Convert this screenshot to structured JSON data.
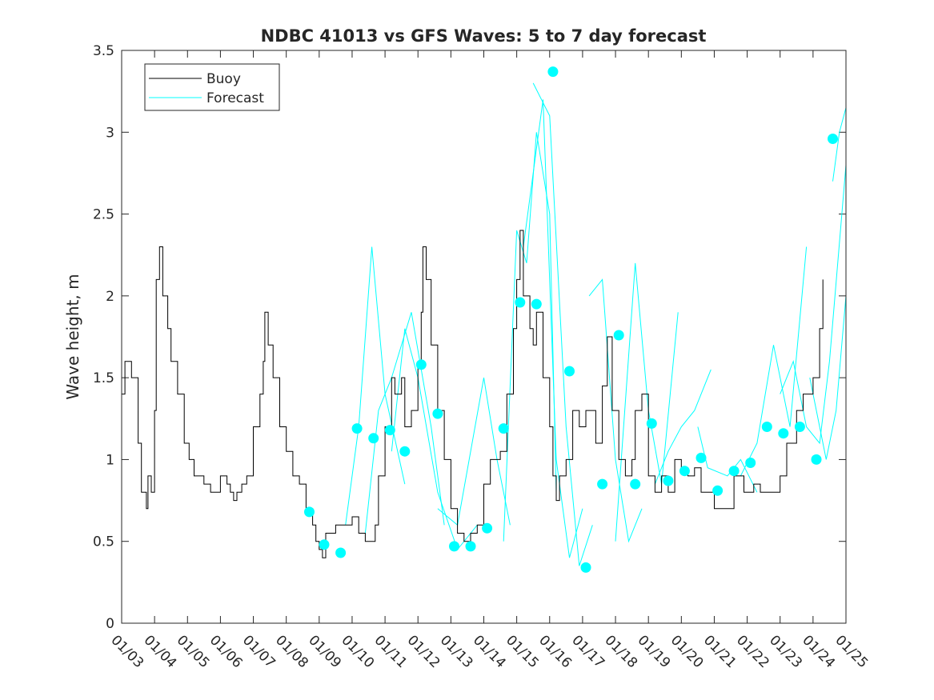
{
  "chart_data": {
    "type": "line",
    "title": "NDBC 41013 vs GFS Waves: 5 to 7 day forecast",
    "xlabel": "",
    "ylabel": "Wave height, m",
    "xlim": [
      0,
      22
    ],
    "ylim": [
      0,
      3.5
    ],
    "x_tick_labels": [
      "01/03",
      "01/04",
      "01/05",
      "01/06",
      "01/07",
      "01/08",
      "01/09",
      "01/10",
      "01/11",
      "01/12",
      "01/13",
      "01/14",
      "01/15",
      "01/16",
      "01/17",
      "01/18",
      "01/19",
      "01/20",
      "01/21",
      "01/22",
      "01/23",
      "01/24",
      "01/25"
    ],
    "y_ticks": [
      0,
      0.5,
      1,
      1.5,
      2,
      2.5,
      3,
      3.5
    ],
    "y_tick_labels": [
      "0",
      "0.5",
      "1",
      "1.5",
      "2",
      "2.5",
      "3",
      "3.5"
    ],
    "legend": {
      "location": "top-left",
      "entries": [
        "Buoy",
        "Forecast"
      ]
    },
    "colors": {
      "buoy": "#000000",
      "forecast": "#00ffff",
      "axis": "#262626"
    },
    "series": [
      {
        "name": "Buoy",
        "points": [
          [
            0,
            1.4
          ],
          [
            0.1,
            1.6
          ],
          [
            0.3,
            1.5
          ],
          [
            0.5,
            1.1
          ],
          [
            0.6,
            0.8
          ],
          [
            0.75,
            0.7
          ],
          [
            0.8,
            0.9
          ],
          [
            0.9,
            0.8
          ],
          [
            1.0,
            1.3
          ],
          [
            1.05,
            2.1
          ],
          [
            1.15,
            2.3
          ],
          [
            1.25,
            2.0
          ],
          [
            1.4,
            1.8
          ],
          [
            1.5,
            1.6
          ],
          [
            1.7,
            1.4
          ],
          [
            1.9,
            1.1
          ],
          [
            2.05,
            1.0
          ],
          [
            2.2,
            0.9
          ],
          [
            2.5,
            0.85
          ],
          [
            2.7,
            0.8
          ],
          [
            2.85,
            0.8
          ],
          [
            3.0,
            0.9
          ],
          [
            3.2,
            0.85
          ],
          [
            3.3,
            0.8
          ],
          [
            3.4,
            0.75
          ],
          [
            3.5,
            0.8
          ],
          [
            3.65,
            0.85
          ],
          [
            3.8,
            0.9
          ],
          [
            4.0,
            1.2
          ],
          [
            4.2,
            1.4
          ],
          [
            4.3,
            1.6
          ],
          [
            4.35,
            1.9
          ],
          [
            4.45,
            1.7
          ],
          [
            4.6,
            1.5
          ],
          [
            4.8,
            1.2
          ],
          [
            5.0,
            1.05
          ],
          [
            5.2,
            0.9
          ],
          [
            5.4,
            0.85
          ],
          [
            5.6,
            0.7
          ],
          [
            5.8,
            0.6
          ],
          [
            5.9,
            0.5
          ],
          [
            6.0,
            0.45
          ],
          [
            6.1,
            0.4
          ],
          [
            6.2,
            0.55
          ],
          [
            6.5,
            0.6
          ],
          [
            6.8,
            0.6
          ],
          [
            7.0,
            0.65
          ],
          [
            7.2,
            0.55
          ],
          [
            7.4,
            0.5
          ],
          [
            7.7,
            0.6
          ],
          [
            7.8,
            0.9
          ],
          [
            8.0,
            1.2
          ],
          [
            8.2,
            1.5
          ],
          [
            8.3,
            1.4
          ],
          [
            8.5,
            1.5
          ],
          [
            8.6,
            1.2
          ],
          [
            8.8,
            1.3
          ],
          [
            9.0,
            1.6
          ],
          [
            9.1,
            1.9
          ],
          [
            9.15,
            2.3
          ],
          [
            9.25,
            2.1
          ],
          [
            9.4,
            1.7
          ],
          [
            9.6,
            1.3
          ],
          [
            9.8,
            1.0
          ],
          [
            10.0,
            0.7
          ],
          [
            10.2,
            0.55
          ],
          [
            10.4,
            0.5
          ],
          [
            10.6,
            0.55
          ],
          [
            10.8,
            0.6
          ],
          [
            11.0,
            0.85
          ],
          [
            11.2,
            1.0
          ],
          [
            11.5,
            1.05
          ],
          [
            11.7,
            1.4
          ],
          [
            11.9,
            1.8
          ],
          [
            12.0,
            2.1
          ],
          [
            12.1,
            2.4
          ],
          [
            12.2,
            2.0
          ],
          [
            12.4,
            1.8
          ],
          [
            12.5,
            1.7
          ],
          [
            12.6,
            1.9
          ],
          [
            12.8,
            1.5
          ],
          [
            13.0,
            1.2
          ],
          [
            13.1,
            0.9
          ],
          [
            13.2,
            0.75
          ],
          [
            13.3,
            0.9
          ],
          [
            13.5,
            1.0
          ],
          [
            13.7,
            1.3
          ],
          [
            13.9,
            1.2
          ],
          [
            14.1,
            1.3
          ],
          [
            14.4,
            1.1
          ],
          [
            14.6,
            1.45
          ],
          [
            14.75,
            1.75
          ],
          [
            14.9,
            1.3
          ],
          [
            15.1,
            1.0
          ],
          [
            15.3,
            0.9
          ],
          [
            15.5,
            1.0
          ],
          [
            15.6,
            1.3
          ],
          [
            15.8,
            1.4
          ],
          [
            16.0,
            0.9
          ],
          [
            16.2,
            0.8
          ],
          [
            16.4,
            0.9
          ],
          [
            16.6,
            0.8
          ],
          [
            16.8,
            1.0
          ],
          [
            17.0,
            0.95
          ],
          [
            17.2,
            0.9
          ],
          [
            17.4,
            0.95
          ],
          [
            17.6,
            0.8
          ],
          [
            17.8,
            0.8
          ],
          [
            18.0,
            0.7
          ],
          [
            18.3,
            0.7
          ],
          [
            18.6,
            0.9
          ],
          [
            18.9,
            0.8
          ],
          [
            19.2,
            0.85
          ],
          [
            19.4,
            0.8
          ],
          [
            19.6,
            0.8
          ],
          [
            20.0,
            0.9
          ],
          [
            20.2,
            1.1
          ],
          [
            20.5,
            1.3
          ],
          [
            20.7,
            1.4
          ],
          [
            21.0,
            1.5
          ],
          [
            21.2,
            1.8
          ],
          [
            21.3,
            2.1
          ]
        ]
      },
      {
        "name": "Forecast",
        "lines": [
          [
            [
              6.8,
              0.6
            ],
            [
              7.2,
              1.2
            ],
            [
              7.6,
              2.3
            ],
            [
              8.0,
              1.4
            ],
            [
              8.6,
              0.85
            ]
          ],
          [
            [
              7.4,
              0.55
            ],
            [
              7.8,
              1.3
            ],
            [
              8.2,
              1.5
            ],
            [
              8.8,
              1.9
            ],
            [
              9.4,
              1.2
            ],
            [
              9.8,
              0.6
            ]
          ],
          [
            [
              8.2,
              1.05
            ],
            [
              8.6,
              1.8
            ],
            [
              9.0,
              1.5
            ],
            [
              9.6,
              0.8
            ],
            [
              10.2,
              0.45
            ],
            [
              10.8,
              0.6
            ]
          ],
          [
            [
              9.6,
              0.7
            ],
            [
              10.2,
              0.6
            ],
            [
              11.0,
              1.5
            ],
            [
              11.4,
              1.0
            ],
            [
              11.8,
              0.6
            ]
          ],
          [
            [
              11.6,
              0.5
            ],
            [
              12.0,
              2.4
            ],
            [
              12.3,
              2.2
            ],
            [
              12.6,
              3.0
            ],
            [
              13.0,
              2.5
            ],
            [
              13.2,
              0.8
            ]
          ],
          [
            [
              12.2,
              2.3
            ],
            [
              12.8,
              3.2
            ],
            [
              13.2,
              1.0
            ],
            [
              13.6,
              0.4
            ],
            [
              14.0,
              0.7
            ]
          ],
          [
            [
              12.5,
              3.3
            ],
            [
              13.0,
              3.1
            ],
            [
              13.5,
              1.2
            ],
            [
              13.9,
              0.35
            ],
            [
              14.3,
              0.6
            ]
          ],
          [
            [
              14.2,
              2.0
            ],
            [
              14.6,
              2.1
            ],
            [
              15.0,
              1.0
            ],
            [
              15.4,
              0.5
            ],
            [
              15.8,
              0.7
            ]
          ],
          [
            [
              15.0,
              0.5
            ],
            [
              15.6,
              2.2
            ],
            [
              16.0,
              1.3
            ],
            [
              16.4,
              0.85
            ],
            [
              16.9,
              1.9
            ]
          ],
          [
            [
              16.2,
              0.85
            ],
            [
              16.6,
              1.05
            ],
            [
              17.0,
              1.2
            ],
            [
              17.4,
              1.3
            ],
            [
              17.9,
              1.55
            ]
          ],
          [
            [
              17.5,
              1.2
            ],
            [
              17.8,
              0.95
            ],
            [
              18.4,
              0.9
            ],
            [
              18.8,
              1.0
            ],
            [
              19.3,
              0.8
            ]
          ],
          [
            [
              18.8,
              0.9
            ],
            [
              19.3,
              1.1
            ],
            [
              19.8,
              1.7
            ],
            [
              20.3,
              1.2
            ],
            [
              20.8,
              2.3
            ]
          ],
          [
            [
              20.0,
              1.4
            ],
            [
              20.4,
              1.6
            ],
            [
              20.8,
              1.2
            ],
            [
              21.2,
              1.1
            ],
            [
              21.5,
              1.6
            ],
            [
              22.0,
              2.8
            ]
          ],
          [
            [
              20.9,
              1.5
            ],
            [
              21.4,
              1.0
            ],
            [
              21.7,
              1.3
            ],
            [
              22.0,
              2.0
            ]
          ],
          [
            [
              21.6,
              2.7
            ],
            [
              21.8,
              3.0
            ],
            [
              22.0,
              3.15
            ]
          ]
        ]
      },
      {
        "name": "Forecast points",
        "points": [
          [
            5.7,
            0.68
          ],
          [
            6.15,
            0.48
          ],
          [
            6.65,
            0.43
          ],
          [
            7.15,
            1.19
          ],
          [
            7.65,
            1.13
          ],
          [
            8.15,
            1.18
          ],
          [
            8.6,
            1.05
          ],
          [
            9.1,
            1.58
          ],
          [
            9.6,
            1.28
          ],
          [
            10.1,
            0.47
          ],
          [
            10.6,
            0.47
          ],
          [
            11.1,
            0.58
          ],
          [
            11.6,
            1.19
          ],
          [
            12.1,
            1.96
          ],
          [
            12.6,
            1.95
          ],
          [
            13.1,
            3.37
          ],
          [
            13.6,
            1.54
          ],
          [
            14.1,
            0.34
          ],
          [
            14.6,
            0.85
          ],
          [
            15.1,
            1.76
          ],
          [
            15.6,
            0.85
          ],
          [
            16.1,
            1.22
          ],
          [
            16.6,
            0.87
          ],
          [
            17.1,
            0.93
          ],
          [
            17.6,
            1.01
          ],
          [
            18.1,
            0.81
          ],
          [
            18.6,
            0.93
          ],
          [
            19.1,
            0.98
          ],
          [
            19.6,
            1.2
          ],
          [
            20.1,
            1.16
          ],
          [
            20.6,
            1.2
          ],
          [
            21.1,
            1.0
          ],
          [
            21.6,
            2.96
          ]
        ]
      }
    ]
  }
}
